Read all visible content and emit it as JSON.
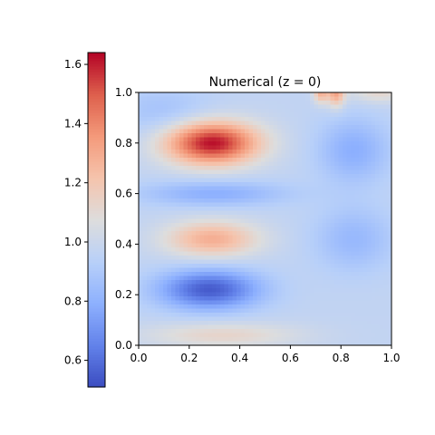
{
  "chart_data": {
    "type": "heatmap",
    "title": "Numerical (z = 0)",
    "xlabel": "",
    "ylabel": "",
    "xlim": [
      0.0,
      1.0
    ],
    "ylim": [
      0.0,
      1.0
    ],
    "x_ticks": [
      "0.0",
      "0.2",
      "0.4",
      "0.6",
      "0.8",
      "1.0"
    ],
    "y_ticks": [
      "0.0",
      "0.2",
      "0.4",
      "0.6",
      "0.8",
      "1.0"
    ],
    "colormap": "coolwarm",
    "grid": false,
    "colorbar": {
      "placement": "left",
      "range": [
        0.51,
        1.64
      ],
      "ticks": [
        "0.6",
        "0.8",
        "1.0",
        "1.2",
        "1.4",
        "1.6"
      ]
    },
    "field": {
      "background": 0.97,
      "features": [
        {
          "x": 0.29,
          "y": 0.8,
          "sx": 0.13,
          "sy": 0.06,
          "value": 0.66
        },
        {
          "x": 0.29,
          "y": 0.42,
          "sx": 0.13,
          "sy": 0.05,
          "value": 0.32
        },
        {
          "x": 0.28,
          "y": 0.22,
          "sx": 0.14,
          "sy": 0.055,
          "value": -0.42
        },
        {
          "x": 0.3,
          "y": 0.6,
          "sx": 0.2,
          "sy": 0.035,
          "value": -0.18
        },
        {
          "x": 0.33,
          "y": 0.04,
          "sx": 0.22,
          "sy": 0.035,
          "value": 0.16
        },
        {
          "x": 0.85,
          "y": 0.77,
          "sx": 0.1,
          "sy": 0.09,
          "value": -0.18
        },
        {
          "x": 0.85,
          "y": 0.42,
          "sx": 0.11,
          "sy": 0.09,
          "value": -0.14
        },
        {
          "x": 0.1,
          "y": 0.92,
          "sx": 0.14,
          "sy": 0.07,
          "value": -0.1
        },
        {
          "x": 0.78,
          "y": 1.0,
          "sx": 0.025,
          "sy": 0.04,
          "value": 0.35
        },
        {
          "x": 0.72,
          "y": 1.0,
          "sx": 0.02,
          "sy": 0.03,
          "value": 0.3
        },
        {
          "x": 0.95,
          "y": 1.0,
          "sx": 0.08,
          "sy": 0.03,
          "value": 0.15
        }
      ]
    }
  }
}
